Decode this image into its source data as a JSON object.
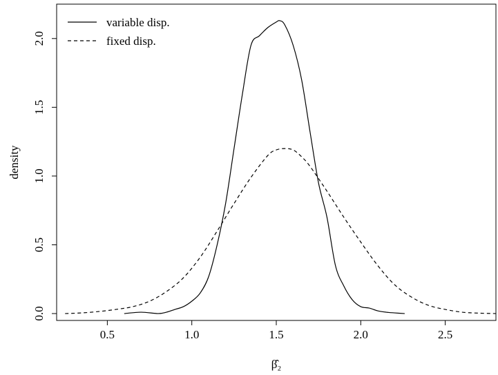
{
  "chart_data": {
    "type": "line",
    "title": "",
    "xlabel": "β̂₂",
    "ylabel": "density",
    "xlim": [
      0.2,
      2.8
    ],
    "ylim": [
      -0.05,
      2.25
    ],
    "xticks": [
      0.5,
      1.0,
      1.5,
      2.0,
      2.5
    ],
    "xtick_labels": [
      "0.5",
      "1.0",
      "1.5",
      "2.0",
      "2.5"
    ],
    "yticks": [
      0.0,
      0.5,
      1.0,
      1.5,
      2.0
    ],
    "ytick_labels": [
      "0.0",
      "0.5",
      "1.0",
      "1.5",
      "2.0"
    ],
    "grid": false,
    "legend_position": "top-left",
    "series": [
      {
        "name": "variable disp.",
        "style": "solid",
        "x": [
          0.6,
          0.7,
          0.8,
          0.85,
          0.9,
          0.95,
          1.0,
          1.05,
          1.1,
          1.15,
          1.2,
          1.25,
          1.3,
          1.35,
          1.4,
          1.45,
          1.5,
          1.52,
          1.55,
          1.6,
          1.65,
          1.7,
          1.75,
          1.8,
          1.85,
          1.9,
          1.95,
          2.0,
          2.05,
          2.1,
          2.15,
          2.2,
          2.26
        ],
        "y": [
          0.0,
          0.01,
          0.0,
          0.01,
          0.03,
          0.05,
          0.09,
          0.15,
          0.27,
          0.5,
          0.8,
          1.2,
          1.6,
          1.95,
          2.02,
          2.08,
          2.12,
          2.13,
          2.1,
          1.95,
          1.7,
          1.32,
          0.95,
          0.7,
          0.35,
          0.2,
          0.1,
          0.05,
          0.04,
          0.02,
          0.01,
          0.005,
          0.0
        ]
      },
      {
        "name": "fixed disp.",
        "style": "dashed",
        "x": [
          0.25,
          0.35,
          0.45,
          0.55,
          0.65,
          0.75,
          0.85,
          0.95,
          1.05,
          1.15,
          1.25,
          1.35,
          1.45,
          1.5,
          1.55,
          1.6,
          1.65,
          1.7,
          1.8,
          1.9,
          2.0,
          2.1,
          2.2,
          2.3,
          2.4,
          2.5,
          2.6,
          2.7,
          2.8
        ],
        "y": [
          0.0,
          0.005,
          0.015,
          0.03,
          0.05,
          0.09,
          0.16,
          0.26,
          0.41,
          0.6,
          0.8,
          0.99,
          1.15,
          1.19,
          1.2,
          1.19,
          1.14,
          1.07,
          0.89,
          0.7,
          0.52,
          0.35,
          0.21,
          0.12,
          0.06,
          0.03,
          0.01,
          0.003,
          0.0
        ]
      }
    ]
  }
}
